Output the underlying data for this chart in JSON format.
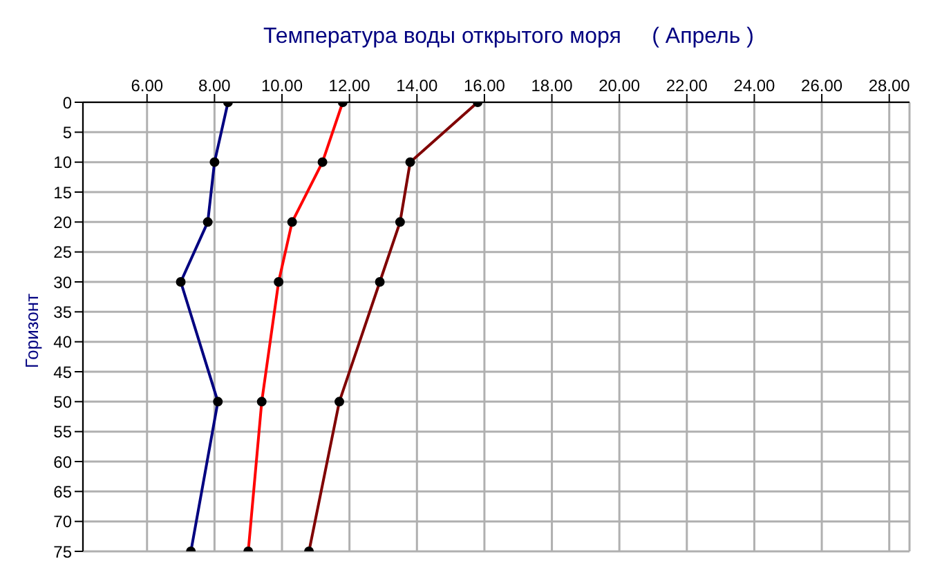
{
  "chart_data": {
    "type": "line",
    "title": "Температура воды открытого моря     ( Апрель )",
    "ylabel": "Горизонт",
    "series": [
      {
        "color": "#000080",
        "x": [
          8.4,
          8.0,
          7.8,
          7.0,
          8.1,
          7.3
        ],
        "values": [
          0,
          10,
          20,
          30,
          50,
          75
        ]
      },
      {
        "color": "#ff0000",
        "x": [
          11.8,
          11.2,
          10.3,
          9.9,
          9.4,
          9.0
        ],
        "values": [
          0,
          10,
          20,
          30,
          50,
          75
        ]
      },
      {
        "color": "#800000",
        "x": [
          15.8,
          13.8,
          13.5,
          12.9,
          11.7,
          10.8
        ],
        "values": [
          0,
          10,
          20,
          30,
          50,
          75
        ]
      }
    ],
    "xlim": [
      4.1,
      28.6
    ],
    "xticks": [
      {
        "value": 6,
        "label": "6.00"
      },
      {
        "value": 8,
        "label": "8.00"
      },
      {
        "value": 10,
        "label": "10.00"
      },
      {
        "value": 12,
        "label": "12.00"
      },
      {
        "value": 14,
        "label": "14.00"
      },
      {
        "value": 16,
        "label": "16.00"
      },
      {
        "value": 18,
        "label": "18.00"
      },
      {
        "value": 20,
        "label": "20.00"
      },
      {
        "value": 22,
        "label": "22.00"
      },
      {
        "value": 24,
        "label": "24.00"
      },
      {
        "value": 26,
        "label": "26.00"
      },
      {
        "value": 28,
        "label": "28.00"
      }
    ],
    "ylim": [
      75,
      0
    ],
    "yticks": [
      0,
      5,
      10,
      15,
      20,
      25,
      30,
      35,
      40,
      45,
      50,
      55,
      60,
      65,
      70,
      75
    ],
    "grid": true,
    "marker": "circle",
    "line_style": "solid"
  }
}
